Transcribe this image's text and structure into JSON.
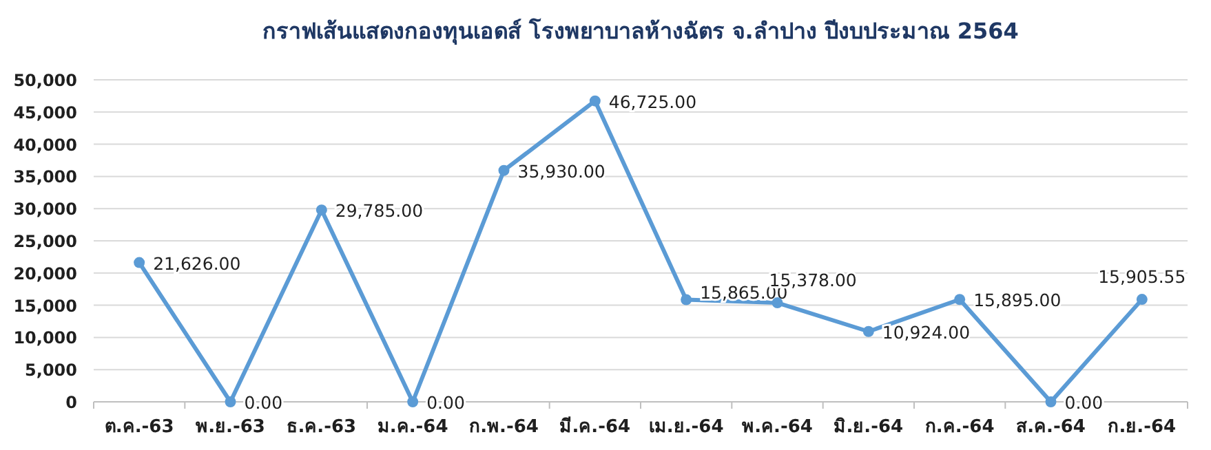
{
  "chart_data": {
    "type": "line",
    "title": "กราฟเส้นแสดงกองทุนเอดส์ โรงพยาบาลห้างฉัตร จ.ลำปาง ปีงบประมาณ 2564",
    "categories": [
      "ต.ค.-63",
      "พ.ย.-63",
      "ธ.ค.-63",
      "ม.ค.-64",
      "ก.พ.-64",
      "มี.ค.-64",
      "เม.ย.-64",
      "พ.ค.-64",
      "มิ.ย.-64",
      "ก.ค.-64",
      "ส.ค.-64",
      "ก.ย.-64"
    ],
    "series": [
      {
        "color": "#5b9bd5",
        "values": [
          21626,
          0,
          29785,
          0,
          35930,
          46725,
          15865,
          15378,
          10924,
          15895,
          0,
          15905.55
        ],
        "value_labels": [
          "21,626.00",
          "0.00",
          "29,785.00",
          "0.00",
          "35,930.00",
          "46,725.00",
          "15,865.00",
          "15,378.00",
          "10,924.00",
          "15,895.00",
          "0.00",
          "15,905.55"
        ]
      }
    ],
    "ylim": [
      0,
      50000
    ],
    "yticks": [
      {
        "value": 0,
        "label": "0"
      },
      {
        "value": 5000,
        "label": "5,000"
      },
      {
        "value": 10000,
        "label": "10,000"
      },
      {
        "value": 15000,
        "label": "15,000"
      },
      {
        "value": 20000,
        "label": "20,000"
      },
      {
        "value": 25000,
        "label": "25,000"
      },
      {
        "value": 30000,
        "label": "30,000"
      },
      {
        "value": 35000,
        "label": "35,000"
      },
      {
        "value": 40000,
        "label": "40,000"
      },
      {
        "value": 45000,
        "label": "45,000"
      },
      {
        "value": 50000,
        "label": "50,000"
      }
    ],
    "grid": "y",
    "marker": "circle",
    "line_style": "solid"
  }
}
